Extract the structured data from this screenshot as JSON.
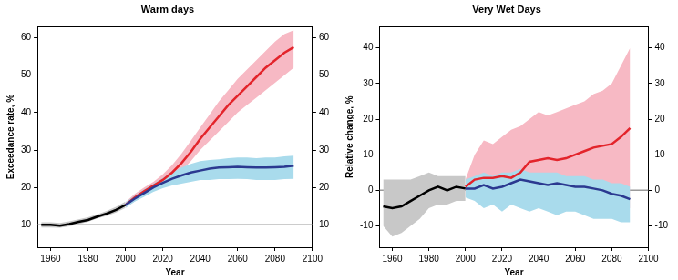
{
  "chart_data": [
    {
      "type": "line",
      "title": "Warm days",
      "x_label": "Year",
      "y_label": "Exceedance rate, %",
      "x": [
        1955,
        1960,
        1965,
        1970,
        1975,
        1980,
        1985,
        1990,
        1995,
        2000,
        2005,
        2010,
        2015,
        2020,
        2025,
        2030,
        2035,
        2040,
        2045,
        2050,
        2055,
        2060,
        2065,
        2070,
        2075,
        2080,
        2085,
        2090
      ],
      "xlim": [
        1953,
        2100
      ],
      "xticks": [
        1960,
        1980,
        2000,
        2020,
        2040,
        2060,
        2080,
        2100
      ],
      "ylim": [
        4,
        63
      ],
      "yticks": [
        10,
        20,
        30,
        40,
        50,
        60
      ],
      "hline": 10,
      "grid": false,
      "series": [
        {
          "color": "#000000",
          "values": [
            10,
            10,
            9.8,
            10.2,
            10.8,
            11.3,
            12.2,
            13,
            14,
            15.3,
            null,
            null,
            null,
            null,
            null,
            null,
            null,
            null,
            null,
            null,
            null,
            null,
            null,
            null,
            null,
            null,
            null,
            null
          ],
          "band": {
            "color": "#c8c8c8",
            "lower": [
              9.3,
              9.3,
              9.2,
              9.6,
              10.2,
              10.8,
              11.7,
              12.4,
              13.3,
              14.5,
              null,
              null,
              null,
              null,
              null,
              null,
              null,
              null,
              null,
              null,
              null,
              null,
              null,
              null,
              null,
              null,
              null,
              null
            ],
            "upper": [
              10.7,
              10.7,
              10.5,
              10.9,
              11.5,
              12,
              12.8,
              13.7,
              14.8,
              16.2,
              null,
              null,
              null,
              null,
              null,
              null,
              null,
              null,
              null,
              null,
              null,
              null,
              null,
              null,
              null,
              null,
              null,
              null
            ]
          }
        },
        {
          "color": "#e3242b",
          "values": [
            null,
            null,
            null,
            null,
            null,
            null,
            null,
            null,
            null,
            15.3,
            17.3,
            19,
            20.5,
            22,
            24,
            26.5,
            29.5,
            33,
            36,
            39,
            42,
            44.5,
            47,
            49.5,
            52,
            54,
            56,
            57.5
          ],
          "band": {
            "color": "#f7b9c4",
            "lower": [
              null,
              null,
              null,
              null,
              null,
              null,
              null,
              null,
              null,
              14.5,
              16.3,
              18,
              19.5,
              21,
              22.5,
              24.5,
              27,
              30,
              32.5,
              35,
              37.5,
              40,
              42,
              44,
              46,
              48,
              50,
              52
            ],
            "upper": [
              null,
              null,
              null,
              null,
              null,
              null,
              null,
              null,
              null,
              16,
              18.3,
              20,
              21.5,
              23.5,
              26,
              29,
              32.5,
              36,
              39.5,
              43,
              46,
              49,
              51.5,
              54,
              56.5,
              59,
              61,
              62
            ]
          }
        },
        {
          "color": "#2b3990",
          "values": [
            null,
            null,
            null,
            null,
            null,
            null,
            null,
            null,
            null,
            15.3,
            17,
            18.5,
            20,
            21.2,
            22.3,
            23.2,
            24,
            24.5,
            25,
            25.3,
            25.4,
            25.5,
            25.4,
            25.3,
            25.3,
            25.4,
            25.5,
            25.8
          ],
          "band": {
            "color": "#a9dbec",
            "lower": [
              null,
              null,
              null,
              null,
              null,
              null,
              null,
              null,
              null,
              14.5,
              16.2,
              17.5,
              18.8,
              19.8,
              20.5,
              21,
              21.5,
              22,
              22,
              22.2,
              22.2,
              22.3,
              22.2,
              22,
              22,
              22,
              22.2,
              22.3
            ],
            "upper": [
              null,
              null,
              null,
              null,
              null,
              null,
              null,
              null,
              null,
              16,
              17.8,
              19.5,
              21,
              22.5,
              24,
              25.3,
              26.3,
              27,
              27.3,
              27.5,
              27.8,
              28,
              28,
              27.8,
              28,
              28,
              28.3,
              28.5
            ]
          }
        }
      ]
    },
    {
      "type": "line",
      "title": "Very Wet Days",
      "x_label": "Year",
      "y_label": "Relative change, %",
      "x": [
        1955,
        1960,
        1965,
        1970,
        1975,
        1980,
        1985,
        1990,
        1995,
        2000,
        2005,
        2010,
        2015,
        2020,
        2025,
        2030,
        2035,
        2040,
        2045,
        2050,
        2055,
        2060,
        2065,
        2070,
        2075,
        2080,
        2085,
        2090
      ],
      "xlim": [
        1953,
        2100
      ],
      "xticks": [
        1960,
        1980,
        2000,
        2020,
        2040,
        2060,
        2080,
        2100
      ],
      "ylim": [
        -16,
        46
      ],
      "yticks": [
        -10,
        0,
        10,
        20,
        30,
        40
      ],
      "hline": 0,
      "grid": false,
      "series": [
        {
          "color": "#000000",
          "values": [
            -4.5,
            -5,
            -4.5,
            -3,
            -1.5,
            0,
            1,
            0,
            1,
            0.5,
            null,
            null,
            null,
            null,
            null,
            null,
            null,
            null,
            null,
            null,
            null,
            null,
            null,
            null,
            null,
            null,
            null,
            null
          ],
          "band": {
            "color": "#c8c8c8",
            "lower": [
              -10,
              -13,
              -12,
              -10,
              -8,
              -5,
              -4,
              -4,
              -3,
              -3,
              null,
              null,
              null,
              null,
              null,
              null,
              null,
              null,
              null,
              null,
              null,
              null,
              null,
              null,
              null,
              null,
              null,
              null
            ],
            "upper": [
              3,
              3,
              3,
              3,
              4,
              5,
              4,
              4,
              4,
              4,
              null,
              null,
              null,
              null,
              null,
              null,
              null,
              null,
              null,
              null,
              null,
              null,
              null,
              null,
              null,
              null,
              null,
              null
            ]
          }
        },
        {
          "color": "#e3242b",
          "values": [
            null,
            null,
            null,
            null,
            null,
            null,
            null,
            null,
            null,
            1,
            3,
            3.5,
            3.5,
            4,
            3.5,
            5,
            8,
            8.5,
            9,
            8.5,
            9,
            10,
            11,
            12,
            12.5,
            13,
            15,
            17.5
          ],
          "band": {
            "color": "#f7b9c4",
            "lower": [
              null,
              null,
              null,
              null,
              null,
              null,
              null,
              null,
              null,
              -2,
              -1,
              -3,
              -3,
              -2,
              -3,
              -4,
              -3,
              -2,
              -4,
              -3,
              -2,
              -1,
              -3,
              -2,
              -3,
              -3,
              -4,
              -5
            ],
            "upper": [
              null,
              null,
              null,
              null,
              null,
              null,
              null,
              null,
              null,
              3,
              10,
              14,
              13,
              15,
              17,
              18,
              20,
              22,
              21,
              22,
              23,
              24,
              25,
              27,
              28,
              30,
              35,
              40
            ]
          }
        },
        {
          "color": "#2b3990",
          "values": [
            null,
            null,
            null,
            null,
            null,
            null,
            null,
            null,
            null,
            0.5,
            0.5,
            1.5,
            0.5,
            1,
            2,
            3,
            2.5,
            2,
            1.5,
            2,
            1.5,
            1,
            1,
            0.5,
            0,
            -1,
            -1.5,
            -2.5
          ],
          "band": {
            "color": "#a9dbec",
            "lower": [
              null,
              null,
              null,
              null,
              null,
              null,
              null,
              null,
              null,
              -2,
              -3,
              -5,
              -4,
              -6,
              -4,
              -5,
              -6,
              -5,
              -6,
              -7,
              -6,
              -6,
              -7,
              -8,
              -8,
              -8,
              -9,
              -9
            ],
            "upper": [
              null,
              null,
              null,
              null,
              null,
              null,
              null,
              null,
              null,
              3,
              4,
              5,
              4,
              5,
              5,
              6,
              5,
              5,
              5,
              5,
              4,
              4,
              4,
              3,
              3,
              2,
              2,
              1
            ]
          }
        }
      ]
    }
  ]
}
